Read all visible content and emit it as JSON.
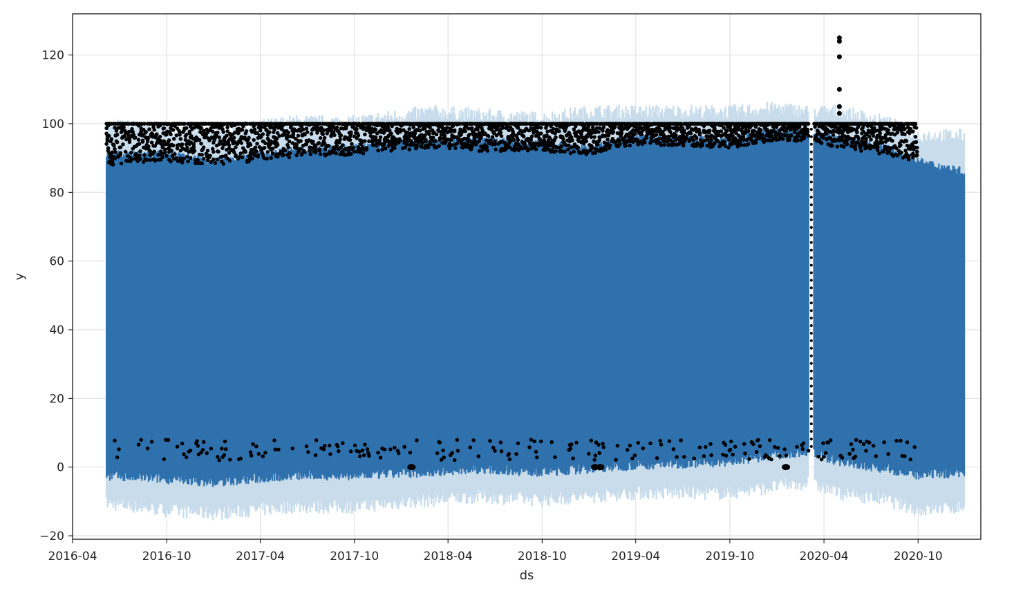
{
  "chart_data": {
    "type": "area",
    "xlabel": "ds",
    "ylabel": "y",
    "x_range": [
      "2016-04-01",
      "2021-01-31"
    ],
    "ylim": [
      -21,
      132
    ],
    "grid": true,
    "x_ticks": [
      "2016-04",
      "2016-10",
      "2017-04",
      "2017-10",
      "2018-04",
      "2018-10",
      "2019-04",
      "2019-10",
      "2020-04",
      "2020-10"
    ],
    "y_ticks": [
      -20,
      0,
      20,
      40,
      60,
      80,
      100,
      120
    ],
    "series": [
      {
        "kind": "forecast",
        "start": "2016-06-06",
        "end": "2020-12-31",
        "yhat_upper_band": [
          [
            "2016-06-06",
            91
          ],
          [
            "2016-10-01",
            91
          ],
          [
            "2017-01-01",
            89
          ],
          [
            "2017-06-01",
            92
          ],
          [
            "2017-10-01",
            93
          ],
          [
            "2018-03-01",
            95
          ],
          [
            "2018-06-01",
            95
          ],
          [
            "2018-10-01",
            94
          ],
          [
            "2019-01-01",
            93
          ],
          [
            "2019-04-01",
            96
          ],
          [
            "2019-10-01",
            95
          ],
          [
            "2020-01-01",
            98
          ],
          [
            "2020-03-01",
            97
          ],
          [
            "2020-05-01",
            96
          ],
          [
            "2020-08-01",
            93
          ],
          [
            "2020-10-01",
            89
          ],
          [
            "2020-12-31",
            86
          ]
        ],
        "yhat_lower_band": [
          [
            "2016-06-06",
            -3
          ],
          [
            "2016-10-01",
            -4
          ],
          [
            "2017-01-01",
            -5
          ],
          [
            "2017-06-01",
            -3
          ],
          [
            "2017-10-01",
            -3
          ],
          [
            "2018-03-01",
            -2
          ],
          [
            "2018-06-01",
            -1
          ],
          [
            "2018-10-01",
            -2
          ],
          [
            "2019-01-01",
            -1
          ],
          [
            "2019-04-01",
            0
          ],
          [
            "2019-10-01",
            1
          ],
          [
            "2020-01-01",
            3
          ],
          [
            "2020-03-01",
            4
          ],
          [
            "2020-05-01",
            1
          ],
          [
            "2020-08-01",
            -1
          ],
          [
            "2020-10-01",
            -3
          ],
          [
            "2020-12-31",
            -2
          ]
        ],
        "uncertainty_upper": [
          [
            "2016-06-06",
            100
          ],
          [
            "2016-10-01",
            99
          ],
          [
            "2017-01-01",
            98
          ],
          [
            "2017-06-01",
            101
          ],
          [
            "2017-10-01",
            101
          ],
          [
            "2018-03-01",
            104
          ],
          [
            "2018-06-01",
            103
          ],
          [
            "2018-10-01",
            102
          ],
          [
            "2019-01-01",
            104
          ],
          [
            "2019-04-01",
            104
          ],
          [
            "2019-10-01",
            104
          ],
          [
            "2020-01-01",
            105
          ],
          [
            "2020-03-01",
            104
          ],
          [
            "2020-05-01",
            104
          ],
          [
            "2020-08-01",
            101
          ],
          [
            "2020-10-01",
            97
          ],
          [
            "2020-12-31",
            97
          ]
        ],
        "uncertainty_lower": [
          [
            "2016-06-06",
            -11
          ],
          [
            "2016-10-01",
            -13
          ],
          [
            "2017-01-01",
            -14
          ],
          [
            "2017-06-01",
            -12
          ],
          [
            "2017-10-01",
            -12
          ],
          [
            "2018-03-01",
            -10
          ],
          [
            "2018-06-01",
            -9
          ],
          [
            "2018-10-01",
            -10
          ],
          [
            "2019-01-01",
            -9
          ],
          [
            "2019-04-01",
            -8
          ],
          [
            "2019-10-01",
            -8
          ],
          [
            "2020-01-01",
            -6
          ],
          [
            "2020-03-01",
            -5
          ],
          [
            "2020-05-01",
            -8
          ],
          [
            "2020-08-01",
            -10
          ],
          [
            "2020-10-01",
            -13
          ],
          [
            "2020-12-31",
            -12
          ]
        ],
        "gap": [
          "2020-03-03",
          "2020-03-12"
        ]
      },
      {
        "kind": "observed",
        "start": "2016-06-06",
        "end": "2020-09-30",
        "cap": 100,
        "dense_band": [
          [
            "2016-06-06",
            88
          ],
          [
            "2016-10-01",
            89
          ],
          [
            "2017-01-01",
            88
          ],
          [
            "2017-06-01",
            90
          ],
          [
            "2017-10-01",
            91
          ],
          [
            "2018-03-01",
            93
          ],
          [
            "2018-06-01",
            92
          ],
          [
            "2018-10-01",
            92
          ],
          [
            "2019-01-01",
            91
          ],
          [
            "2019-04-01",
            94
          ],
          [
            "2019-10-01",
            93
          ],
          [
            "2020-01-01",
            95
          ],
          [
            "2020-03-01",
            95
          ],
          [
            "2020-05-01",
            93
          ],
          [
            "2020-08-01",
            91
          ],
          [
            "2020-09-30",
            89
          ]
        ],
        "zero_clusters": [
          "2018-01-20",
          "2019-01-12",
          "2019-01-22",
          "2020-01-18"
        ],
        "outliers": [
          [
            "2020-05-01",
            125
          ],
          [
            "2020-05-01",
            124
          ],
          [
            "2020-05-01",
            119.5
          ],
          [
            "2020-05-01",
            110
          ],
          [
            "2020-05-01",
            105
          ],
          [
            "2020-05-01",
            103
          ]
        ]
      }
    ],
    "colors": {
      "forecast": "#2e71ad",
      "uncertainty": "#c8dcec",
      "observed": "#000000",
      "grid": "#dddddd",
      "frame": "#000000"
    }
  }
}
